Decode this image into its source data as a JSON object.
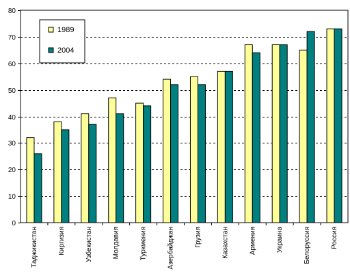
{
  "chart_data": {
    "type": "bar",
    "title": "",
    "xlabel": "",
    "ylabel": "",
    "ylim": [
      0,
      80
    ],
    "yticks": [
      0,
      10,
      20,
      30,
      40,
      50,
      60,
      70,
      80
    ],
    "grid": "horizontal-dashed",
    "legend_position": "top-left",
    "categories": [
      "Таджикистан",
      "Киргизия",
      "Узбекистан",
      "Молдавия",
      "Туркмения",
      "Азербайджан",
      "Грузия",
      "Казахстан",
      "Армения",
      "Украина",
      "Белоруссия",
      "Россия"
    ],
    "series": [
      {
        "name": "1989",
        "color": "#ffff99",
        "values": [
          32,
          38,
          41,
          47,
          45,
          54,
          55,
          57,
          67,
          67,
          65,
          73
        ]
      },
      {
        "name": "2004",
        "color": "#008080",
        "values": [
          26,
          35,
          37,
          41,
          44,
          52,
          52,
          57,
          64,
          67,
          72,
          73
        ]
      }
    ]
  }
}
